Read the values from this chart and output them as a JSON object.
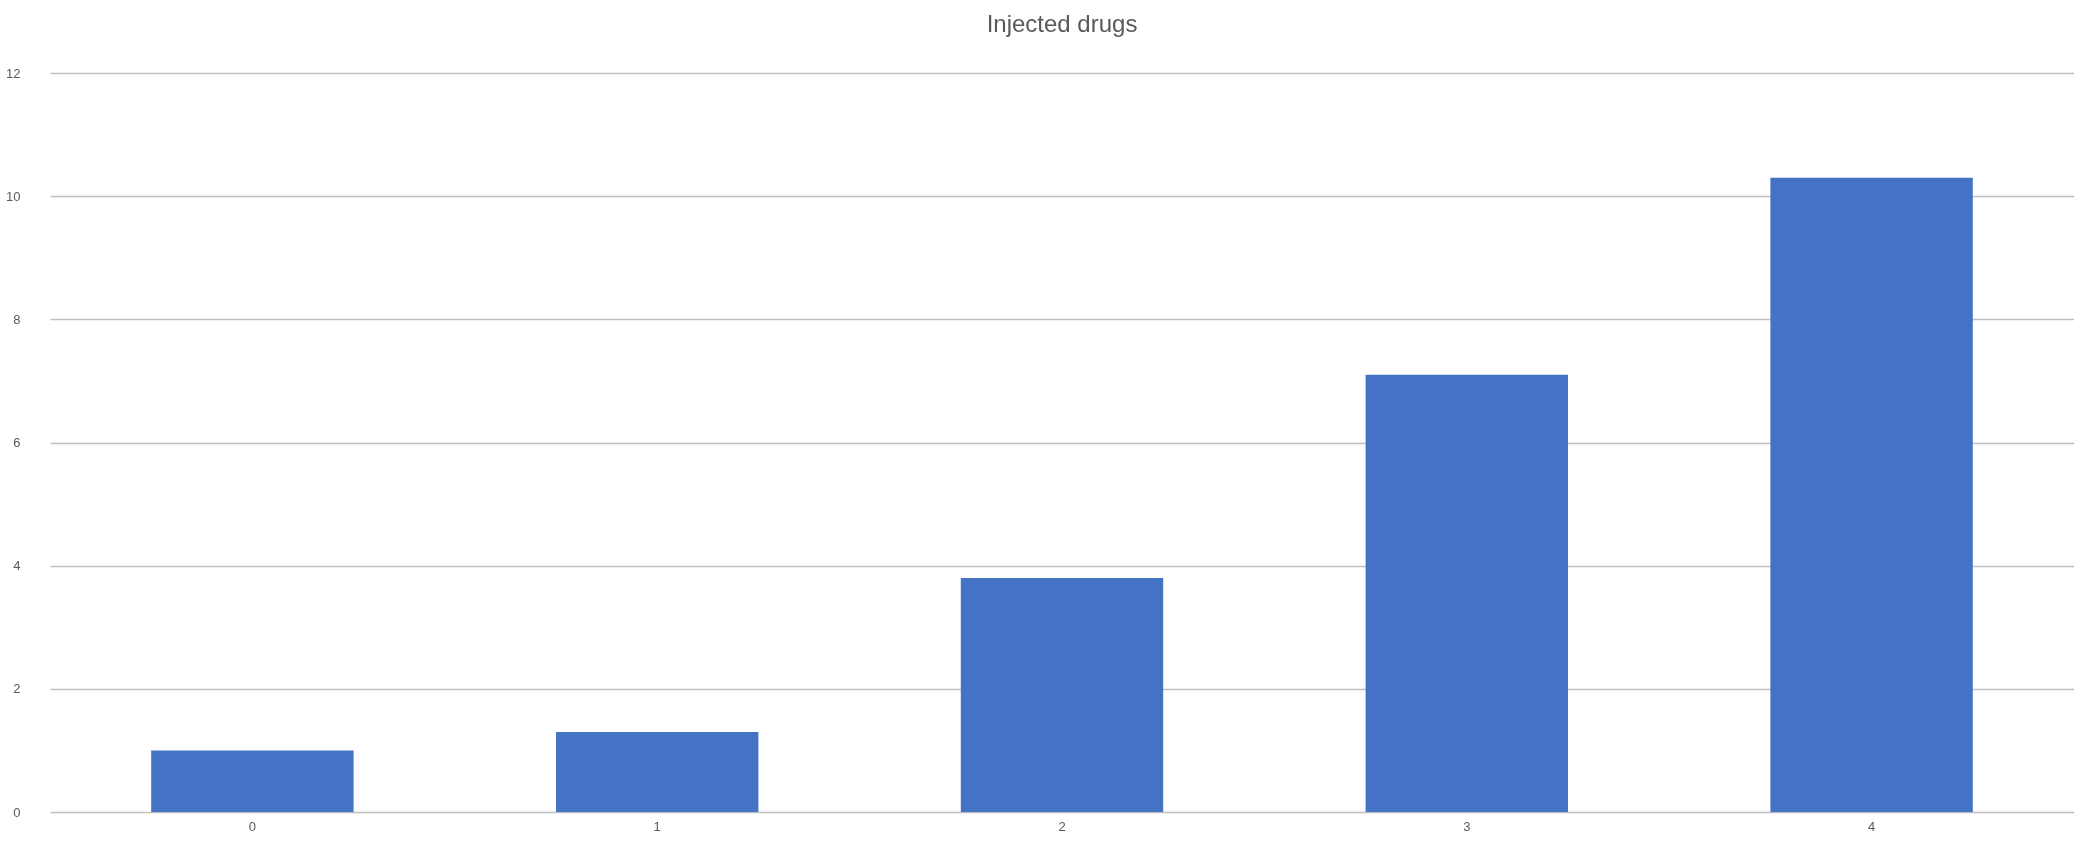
{
  "chart_data": {
    "type": "bar",
    "title": "Injected drugs",
    "categories": [
      "0",
      "1",
      "2",
      "3",
      "4"
    ],
    "values": [
      1.0,
      1.3,
      3.8,
      7.1,
      10.3
    ],
    "color": "#4472c4",
    "ylim": [
      0,
      12
    ],
    "yticks": [
      0,
      2,
      4,
      6,
      8,
      10,
      12
    ],
    "grid": "y"
  }
}
